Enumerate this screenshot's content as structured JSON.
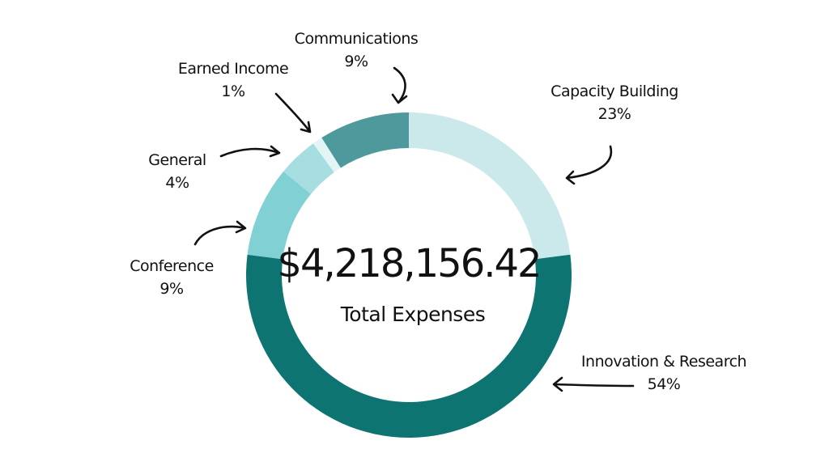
{
  "chart_data": {
    "type": "pie",
    "variant": "donut",
    "center_value": "$4,218,156.42",
    "center_label": "Total Expenses",
    "slices": [
      {
        "name": "Capacity Building",
        "percent_label": "23%",
        "value": 23,
        "color": "#cbe9eb"
      },
      {
        "name": "Innovation & Research",
        "percent_label": "54%",
        "value": 54,
        "color": "#0e7472"
      },
      {
        "name": "Conference",
        "percent_label": "9%",
        "value": 9,
        "color": "#80d0d4"
      },
      {
        "name": "General",
        "percent_label": "4%",
        "value": 4,
        "color": "#a6dde0"
      },
      {
        "name": "Earned Income",
        "percent_label": "1%",
        "value": 1,
        "color": "#e3f4f5"
      },
      {
        "name": "Communications",
        "percent_label": "9%",
        "value": 9,
        "color": "#4d999b"
      }
    ]
  }
}
